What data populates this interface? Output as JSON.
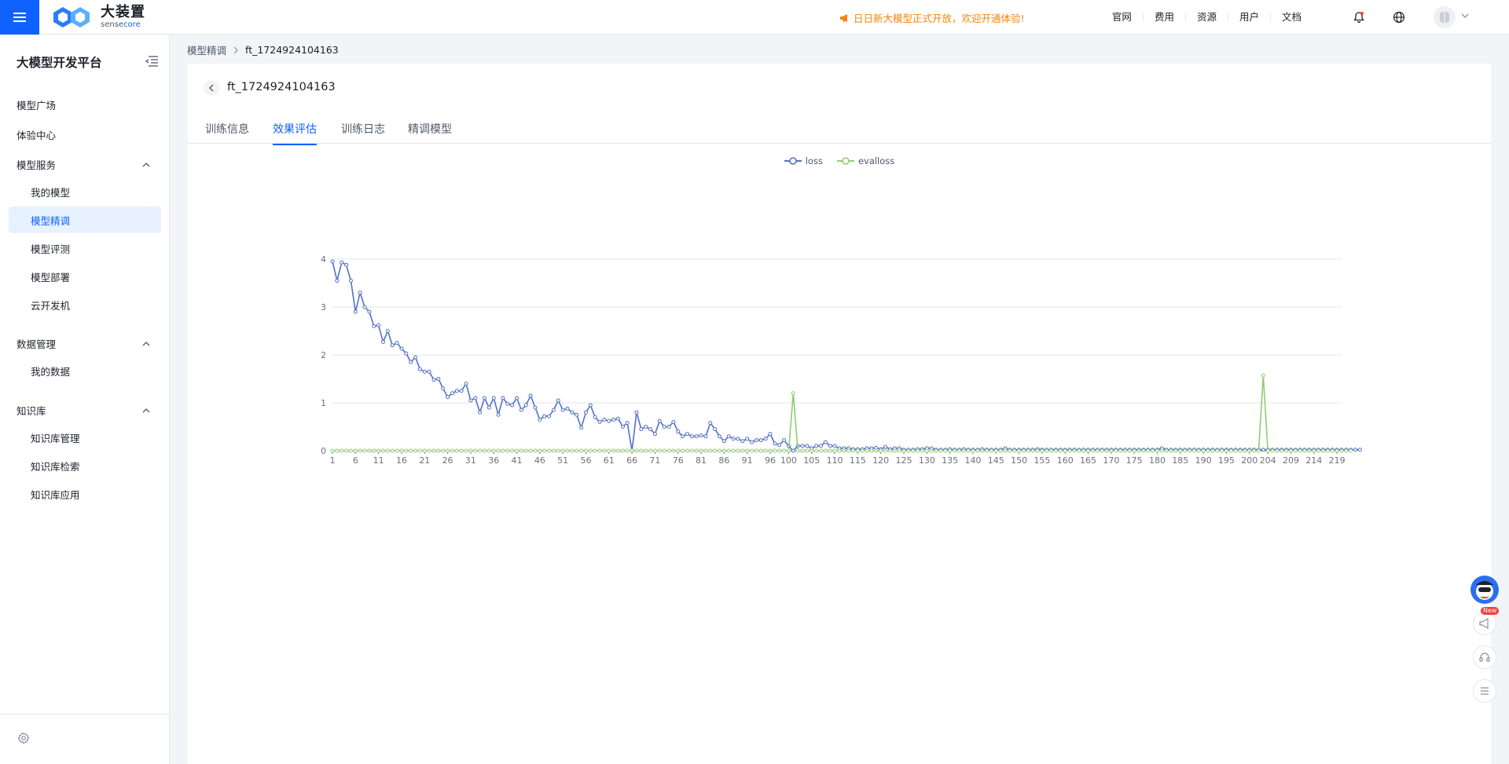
{
  "header": {
    "logo_main": "大装置",
    "logo_sub_a": "sense",
    "logo_sub_b": "core",
    "announcement": "日日新大模型正式开放，欢迎开通体验!",
    "nav": [
      "官网",
      "费用",
      "资源",
      "用户",
      "文档"
    ],
    "icons": [
      "bell-icon",
      "globe-icon",
      "avatar",
      "chevron-down-icon"
    ]
  },
  "sidebar": {
    "title": "大模型开发平台",
    "items": [
      {
        "label": "模型广场"
      },
      {
        "label": "体验中心"
      }
    ],
    "groups": [
      {
        "label": "模型服务",
        "children": [
          "我的模型",
          "模型精调",
          "模型评测",
          "模型部署",
          "云开发机"
        ],
        "active": "模型精调"
      },
      {
        "label": "数据管理",
        "children": [
          "我的数据"
        ]
      },
      {
        "label": "知识库",
        "children": [
          "知识库管理",
          "知识库检索",
          "知识库应用"
        ]
      }
    ]
  },
  "breadcrumb": {
    "parent": "模型精调",
    "current": "ft_1724924104163"
  },
  "page": {
    "title": "ft_1724924104163",
    "tabs": [
      "训练信息",
      "效果评估",
      "训练日志",
      "精调模型"
    ],
    "active_tab": "效果评估"
  },
  "colors": {
    "accent": "#0f62fe",
    "loss": "#5470c6",
    "evalloss": "#91cc75",
    "announce": "#f5840c"
  },
  "chart_data": {
    "type": "line",
    "legend_position": "top-center",
    "grid": true,
    "ylim": [
      0,
      4
    ],
    "yticks": [
      0,
      1,
      2,
      3,
      4
    ],
    "x_start": 1,
    "x_end": 220,
    "xtick_labels": [
      "1",
      "6",
      "11",
      "16",
      "21",
      "26",
      "31",
      "36",
      "41",
      "46",
      "51",
      "56",
      "61",
      "66",
      "71",
      "76",
      "81",
      "86",
      "91",
      "96",
      "100",
      "105",
      "110",
      "115",
      "120",
      "125",
      "130",
      "135",
      "140",
      "145",
      "150",
      "155",
      "160",
      "165",
      "170",
      "175",
      "180",
      "185",
      "190",
      "195",
      "200",
      "204",
      "209",
      "214",
      "219"
    ],
    "series": [
      {
        "name": "loss",
        "values": [
          3.95,
          3.55,
          3.93,
          3.88,
          3.55,
          2.9,
          3.3,
          3.0,
          2.9,
          2.6,
          2.62,
          2.27,
          2.5,
          2.2,
          2.25,
          2.13,
          2.03,
          1.85,
          1.95,
          1.7,
          1.65,
          1.65,
          1.48,
          1.5,
          1.3,
          1.12,
          1.2,
          1.25,
          1.25,
          1.4,
          1.05,
          1.1,
          0.8,
          1.1,
          0.9,
          1.1,
          0.75,
          1.1,
          0.98,
          0.95,
          1.1,
          0.85,
          0.95,
          1.15,
          0.9,
          0.65,
          0.72,
          0.72,
          0.85,
          1.05,
          0.85,
          0.88,
          0.8,
          0.75,
          0.48,
          0.8,
          0.95,
          0.7,
          0.6,
          0.65,
          0.62,
          0.65,
          0.67,
          0.5,
          0.58,
          0.0,
          0.8,
          0.45,
          0.5,
          0.45,
          0.35,
          0.62,
          0.5,
          0.5,
          0.6,
          0.4,
          0.3,
          0.35,
          0.3,
          0.3,
          0.32,
          0.3,
          0.58,
          0.45,
          0.3,
          0.2,
          0.3,
          0.25,
          0.25,
          0.2,
          0.25,
          0.18,
          0.22,
          0.22,
          0.25,
          0.35,
          0.15,
          0.12,
          0.22,
          0.1,
          0.0,
          0.1,
          0.1,
          0.1,
          0.05,
          0.1,
          0.1,
          0.18,
          0.1,
          0.1,
          0.05,
          0.05,
          0.05,
          0.03,
          0.03,
          0.03,
          0.05,
          0.05,
          0.06,
          0.03,
          0.08,
          0.03,
          0.05,
          0.05,
          0.02,
          0.02,
          0.02,
          0.03,
          0.03,
          0.05,
          0.05,
          0.02,
          0.02,
          0.02,
          0.03,
          0.02,
          0.02,
          0.03,
          0.02,
          0.02,
          0.02,
          0.03,
          0.02,
          0.02,
          0.02,
          0.02,
          0.05,
          0.02,
          0.02,
          0.02,
          0.02,
          0.02,
          0.02,
          0.03,
          0.02,
          0.02,
          0.02,
          0.02,
          0.02,
          0.02,
          0.02,
          0.02,
          0.02,
          0.02,
          0.02,
          0.02,
          0.02,
          0.02,
          0.02,
          0.02,
          0.02,
          0.02,
          0.02,
          0.02,
          0.02,
          0.02,
          0.02,
          0.02,
          0.02,
          0.02,
          0.05,
          0.02,
          0.02,
          0.02,
          0.02,
          0.02,
          0.02,
          0.02,
          0.02,
          0.02,
          0.02,
          0.02,
          0.02,
          0.02,
          0.02,
          0.02,
          0.02,
          0.02,
          0.02,
          0.02,
          0.02,
          0.02,
          0.02,
          0.02,
          0.02,
          0.02,
          0.02,
          0.02,
          0.02,
          0.02,
          0.02,
          0.02,
          0.02,
          0.02,
          0.02,
          0.02,
          0.02,
          0.02,
          0.02,
          0.02,
          0.02,
          0.02,
          0.02,
          0.02
        ]
      },
      {
        "name": "evalloss",
        "values": [
          0,
          0,
          0,
          0,
          0,
          0,
          0,
          0,
          0,
          0,
          0,
          0,
          0,
          0,
          0,
          0,
          0,
          0,
          0,
          0,
          0,
          0,
          0,
          0,
          0,
          0,
          0,
          0,
          0,
          0,
          0,
          0,
          0,
          0,
          0,
          0,
          0,
          0,
          0,
          0,
          0,
          0,
          0,
          0,
          0,
          0,
          0,
          0,
          0,
          0,
          0,
          0,
          0,
          0,
          0,
          0,
          0,
          0,
          0,
          0,
          0,
          0,
          0,
          0,
          0,
          0,
          0,
          0,
          0,
          0,
          0,
          0,
          0,
          0,
          0,
          0,
          0,
          0,
          0,
          0,
          0,
          0,
          0,
          0,
          0,
          0,
          0,
          0,
          0,
          0,
          0,
          0,
          0,
          0,
          0,
          0,
          0,
          0,
          0,
          0,
          1.2,
          0,
          0,
          0,
          0,
          0,
          0,
          0,
          0,
          0,
          0,
          0,
          0,
          0,
          0,
          0,
          0,
          0,
          0,
          0,
          0,
          0,
          0,
          0,
          0,
          0,
          0,
          0,
          0,
          0,
          0,
          0,
          0,
          0,
          0,
          0,
          0,
          0,
          0,
          0,
          0,
          0,
          0,
          0,
          0,
          0,
          0,
          0,
          0,
          0,
          0,
          0,
          0,
          0,
          0,
          0,
          0,
          0,
          0,
          0,
          0,
          0,
          0,
          0,
          0,
          0,
          0,
          0,
          0,
          0,
          0,
          0,
          0,
          0,
          0,
          0,
          0,
          0,
          0,
          0,
          0,
          0,
          0,
          0,
          0,
          0,
          0,
          0,
          0,
          0,
          0,
          0,
          0,
          0,
          0,
          0,
          0,
          0,
          0,
          0,
          0,
          0,
          1.57,
          0,
          0,
          0,
          0,
          0,
          0,
          0,
          0,
          0,
          0,
          0,
          0,
          0,
          0,
          0,
          0,
          0,
          0,
          0
        ]
      }
    ]
  }
}
